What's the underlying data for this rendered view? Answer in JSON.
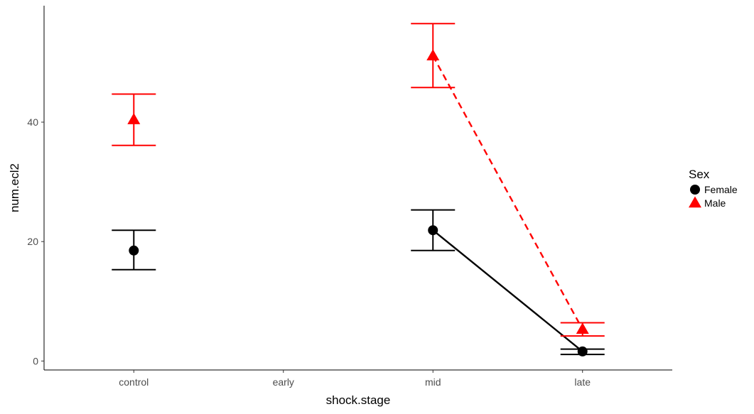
{
  "chart_data": {
    "type": "scatter",
    "xlabel": "shock.stage",
    "ylabel": "num.ecl2",
    "categories": [
      "control",
      "early",
      "mid",
      "late"
    ],
    "ylim": [
      -1.5,
      59.5
    ],
    "yticks": [
      0,
      20,
      40
    ],
    "grid": false,
    "legend": {
      "title": "Sex",
      "position": "right"
    },
    "series": [
      {
        "name": "Female",
        "color": "#000000",
        "marker": "circle",
        "line_style": "solid",
        "points": [
          {
            "x": "control",
            "y": 18.5,
            "ymin": 15.3,
            "ymax": 21.9
          },
          {
            "x": "mid",
            "y": 21.9,
            "ymin": 18.5,
            "ymax": 25.3
          },
          {
            "x": "late",
            "y": 1.6,
            "ymin": 1.1,
            "ymax": 2.0
          }
        ],
        "line_from": "mid"
      },
      {
        "name": "Male",
        "color": "#ff0000",
        "marker": "triangle",
        "line_style": "dashed",
        "points": [
          {
            "x": "control",
            "y": 40.4,
            "ymin": 36.1,
            "ymax": 44.7
          },
          {
            "x": "mid",
            "y": 51.1,
            "ymin": 45.8,
            "ymax": 56.5
          },
          {
            "x": "late",
            "y": 5.3,
            "ymin": 4.2,
            "ymax": 6.4
          }
        ],
        "line_from": "mid"
      }
    ]
  }
}
